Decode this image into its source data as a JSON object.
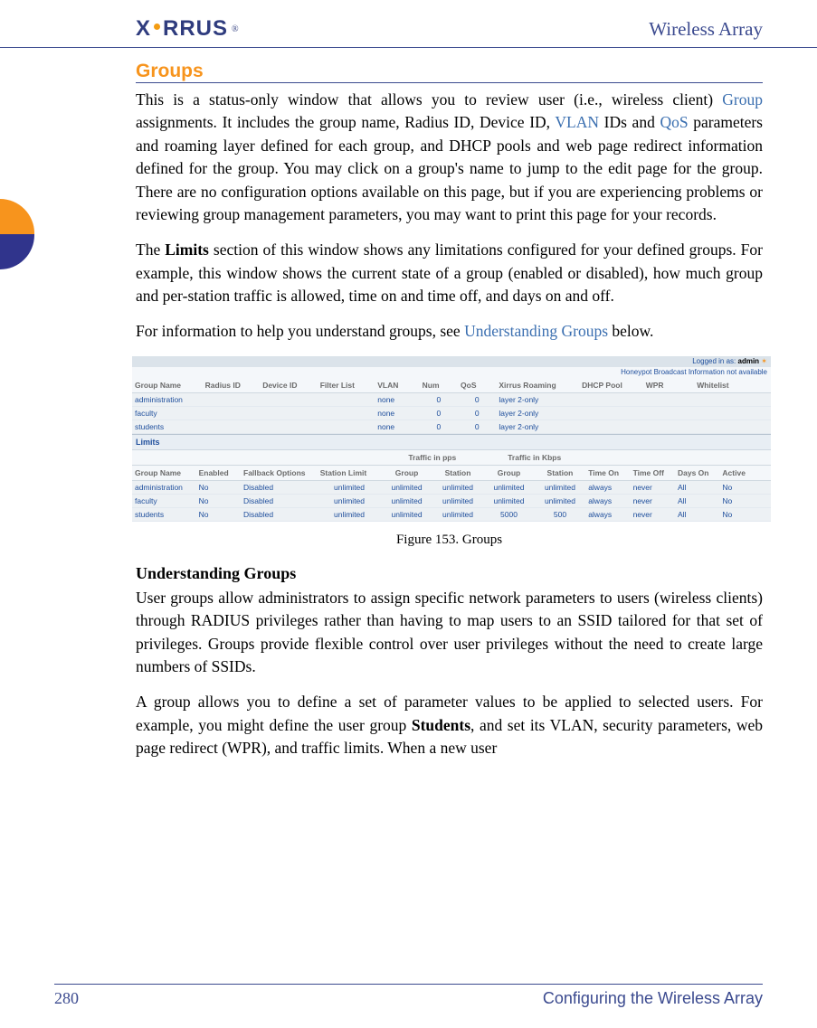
{
  "header": {
    "logo_text_1": "X",
    "logo_text_2": "RRUS",
    "title": "Wireless Array"
  },
  "content": {
    "h2": "Groups",
    "p1_a": "This is a status-only window that allows you to review user (i.e., wireless client) ",
    "p1_link1": "Group",
    "p1_b": " assignments. It includes the group name, Radius ID, Device ID, ",
    "p1_link2": "VLAN",
    "p1_c": " IDs and ",
    "p1_link3": "QoS",
    "p1_d": " parameters and roaming layer defined for each group, and DHCP pools and web page redirect information defined for the group. You may click on a group's name to jump to the edit page for the group. There are no configuration options available on this page, but if you are experiencing problems or reviewing group management parameters, you may want to print this page for your records.",
    "p2_a": "The ",
    "p2_bold": "Limits",
    "p2_b": " section of this window shows any limitations configured for your defined groups. For example, this window shows the current state of a group (enabled or disabled), how much group and per-station traffic is allowed, time on and time off, and days on and off.",
    "p3_a": "For information to help you understand groups, see ",
    "p3_link": "Understanding Groups",
    "p3_b": " below.",
    "figure_caption": "Figure 153. Groups",
    "h3": "Understanding Groups",
    "p4": "User groups allow administrators to assign specific network parameters to users (wireless clients) through RADIUS privileges rather than having to map users to an SSID tailored for that set of privileges. Groups provide flexible control over user privileges without the need to create large numbers of SSIDs.",
    "p5_a": "A group allows you to define a set of parameter values to be applied to selected users. For example, you might define the user group ",
    "p5_bold": "Students",
    "p5_b": ", and set its VLAN, security parameters, web page redirect (WPR), and traffic limits. When a new user"
  },
  "figure": {
    "login_label": "Logged in as: ",
    "login_user": "admin",
    "sub_msg": "Honeypot Broadcast Information not available",
    "table1": {
      "headers": [
        "Group Name",
        "Radius ID",
        "Device ID",
        "Filter List",
        "VLAN",
        "Num",
        "QoS",
        "Xirrus Roaming",
        "DHCP Pool",
        "WPR",
        "Whitelist"
      ],
      "rows": [
        [
          "administration",
          "",
          "",
          "",
          "none",
          "0",
          "0",
          "layer 2-only",
          "",
          "",
          ""
        ],
        [
          "faculty",
          "",
          "",
          "",
          "none",
          "0",
          "0",
          "layer 2-only",
          "",
          "",
          ""
        ],
        [
          "students",
          "",
          "",
          "",
          "none",
          "0",
          "0",
          "layer 2-only",
          "",
          "",
          ""
        ]
      ]
    },
    "limits_label": "Limits",
    "traffic_pps": "Traffic in pps",
    "traffic_kbps": "Traffic in Kbps",
    "table2": {
      "headers": [
        "Group Name",
        "Enabled",
        "Fallback Options",
        "Station Limit",
        "Group",
        "Station",
        "Group",
        "Station",
        "Time On",
        "Time Off",
        "Days On",
        "Active"
      ],
      "rows": [
        [
          "administration",
          "No",
          "Disabled",
          "unlimited",
          "unlimited",
          "unlimited",
          "unlimited",
          "unlimited",
          "always",
          "never",
          "All",
          "No"
        ],
        [
          "faculty",
          "No",
          "Disabled",
          "unlimited",
          "unlimited",
          "unlimited",
          "unlimited",
          "unlimited",
          "always",
          "never",
          "All",
          "No"
        ],
        [
          "students",
          "No",
          "Disabled",
          "unlimited",
          "unlimited",
          "unlimited",
          "5000",
          "500",
          "always",
          "never",
          "All",
          "No"
        ]
      ]
    }
  },
  "footer": {
    "page": "280",
    "title": "Configuring the Wireless Array"
  },
  "colors": {
    "accent_blue": "#3b4a8f",
    "link_blue": "#3b6fb0",
    "orange": "#f7941d",
    "table_link": "#1e4e9c"
  }
}
